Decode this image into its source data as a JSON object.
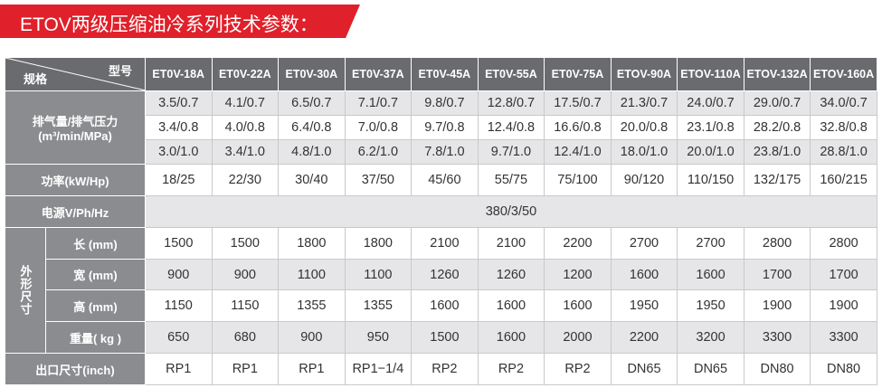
{
  "header": {
    "title": "ETOV两级压缩油冷系列技术参数："
  },
  "table": {
    "corner": {
      "top": "型号",
      "bottom": "规格"
    },
    "models": [
      "ET0V-18A",
      "ET0V-22A",
      "ET0V-30A",
      "ET0V-37A",
      "ET0V-45A",
      "ET0V-55A",
      "ET0V-75A",
      "ETOV-90A",
      "ETOV-110A",
      "ETOV-132A",
      "ETOV-160A"
    ],
    "pressure": {
      "label": "排气量/排气压力",
      "unit": "(m³/min/MPa)",
      "rows": [
        [
          "3.5/0.7",
          "4.1/0.7",
          "6.5/0.7",
          "7.1/0.7",
          "9.8/0.7",
          "12.8/0.7",
          "17.5/0.7",
          "21.3/0.7",
          "24.0/0.7",
          "29.0/0.7",
          "34.0/0.7"
        ],
        [
          "3.4/0.8",
          "4.0/0.8",
          "6.4/0.8",
          "7.0/0.8",
          "9.7/0.8",
          "12.4/0.8",
          "16.6/0.8",
          "20.0/0.8",
          "23.1/0.8",
          "28.2/0.8",
          "32.8/0.8"
        ],
        [
          "3.0/1.0",
          "3.4/1.0",
          "4.8/1.0",
          "6.2/1.0",
          "7.8/1.0",
          "9.7/1.0",
          "12.4/1.0",
          "18.0/1.0",
          "20.0/1.0",
          "23.8/1.0",
          "28.8/1.0"
        ]
      ]
    },
    "power": {
      "label": "功率(kW/Hp)",
      "values": [
        "18/25",
        "22/30",
        "30/40",
        "37/50",
        "45/60",
        "55/75",
        "75/100",
        "90/120",
        "110/150",
        "132/175",
        "160/215"
      ]
    },
    "supply": {
      "label": "电源V/Ph/Hz",
      "value": "380/3/50"
    },
    "dimensions": {
      "label": "外形尺寸",
      "rows": [
        {
          "label": "长 (mm)",
          "values": [
            "1500",
            "1500",
            "1800",
            "1800",
            "2100",
            "2100",
            "2200",
            "2700",
            "2700",
            "2800",
            "2800"
          ]
        },
        {
          "label": "宽 (mm)",
          "values": [
            "900",
            "900",
            "1100",
            "1100",
            "1260",
            "1260",
            "1200",
            "1600",
            "1600",
            "1700",
            "1700"
          ]
        },
        {
          "label": "高 (mm)",
          "values": [
            "1150",
            "1150",
            "1355",
            "1355",
            "1600",
            "1600",
            "1600",
            "1950",
            "1950",
            "1900",
            "1900"
          ]
        },
        {
          "label": "重量( kg )",
          "values": [
            "650",
            "680",
            "900",
            "950",
            "1500",
            "1600",
            "2000",
            "2200",
            "3200",
            "3300",
            "3300"
          ]
        }
      ]
    },
    "outlet": {
      "label": "出口尺寸(inch)",
      "values": [
        "RP1",
        "RP1",
        "RP1",
        "RP1−1/4",
        "RP2",
        "RP2",
        "RP2",
        "DN65",
        "DN65",
        "DN80",
        "DN80"
      ]
    }
  }
}
